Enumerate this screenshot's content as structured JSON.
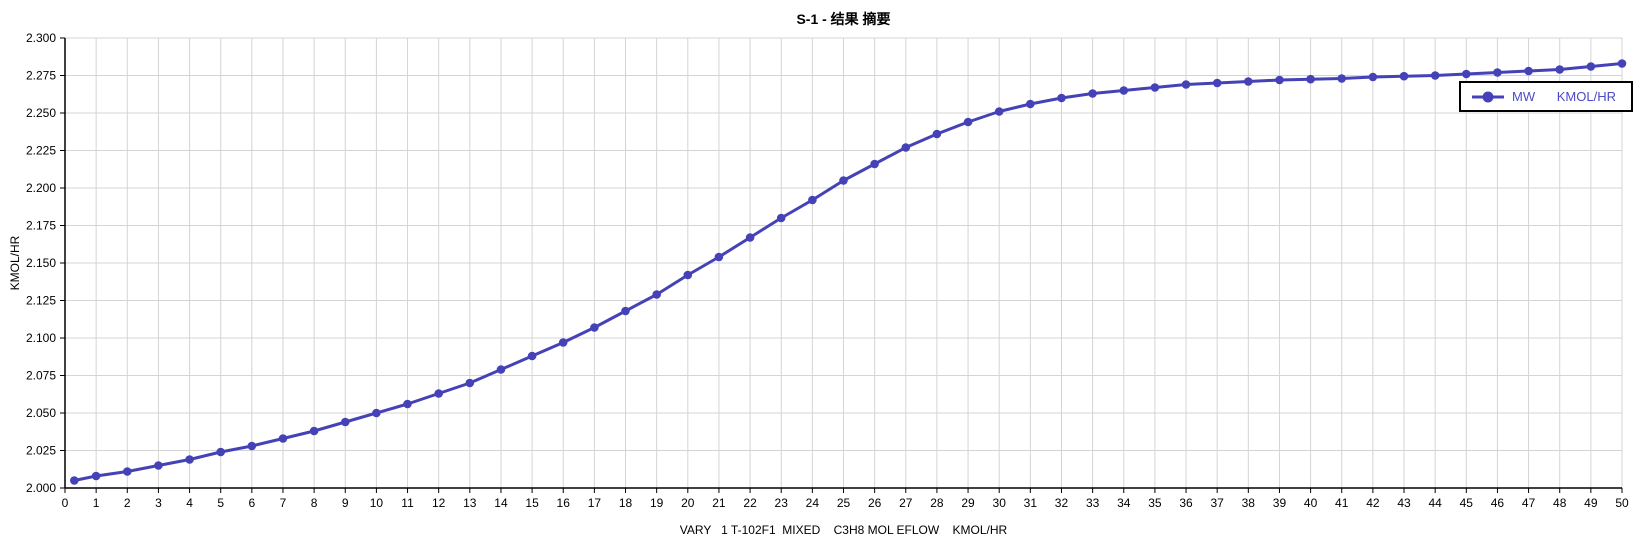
{
  "title": "S-1 - 结果 摘要",
  "colors": {
    "series": "#4442b6",
    "grid": "#d4d4d4",
    "axis": "#000000",
    "legend_text": "#4c4ac4",
    "legend_border": "#000000",
    "background": "#ffffff",
    "tick_label": "#000000"
  },
  "y_axis": {
    "label": "KMOL/HR"
  },
  "x_axis": {
    "title": "VARY   1 T-102F1  MIXED    C3H8 MOL EFLOW    KMOL/HR"
  },
  "legend": {
    "series_label": "MW",
    "units_label": "KMOL/HR"
  },
  "chart_data": {
    "type": "line",
    "title": "S-1 - 结果 摘要",
    "xlabel": "VARY   1 T-102F1  MIXED    C3H8 MOL EFLOW    KMOL/HR",
    "ylabel": "KMOL/HR",
    "xlim": [
      0,
      50
    ],
    "ylim": [
      2.0,
      2.3
    ],
    "grid": true,
    "legend_position": "top-right",
    "marker": "circle",
    "x_ticks": [
      "0",
      "1",
      "2",
      "3",
      "4",
      "5",
      "6",
      "7",
      "8",
      "9",
      "10",
      "11",
      "12",
      "13",
      "14",
      "15",
      "16",
      "17",
      "18",
      "19",
      "20",
      "21",
      "22",
      "23",
      "24",
      "25",
      "26",
      "27",
      "28",
      "29",
      "30",
      "31",
      "32",
      "33",
      "34",
      "35",
      "36",
      "37",
      "38",
      "39",
      "40",
      "41",
      "42",
      "43",
      "44",
      "45",
      "46",
      "47",
      "48",
      "49",
      "50"
    ],
    "y_ticks": [
      "2.000",
      "2.025",
      "2.050",
      "2.075",
      "2.100",
      "2.125",
      "2.150",
      "2.175",
      "2.200",
      "2.225",
      "2.250",
      "2.275",
      "2.300"
    ],
    "series": [
      {
        "name": "MW",
        "units": "KMOL/HR",
        "x": [
          0.3,
          1,
          2,
          3,
          4,
          5,
          6,
          7,
          8,
          9,
          10,
          11,
          12,
          13,
          14,
          15,
          16,
          17,
          18,
          19,
          20,
          21,
          22,
          23,
          24,
          25,
          26,
          27,
          28,
          29,
          30,
          31,
          32,
          33,
          34,
          35,
          36,
          37,
          38,
          39,
          40,
          41,
          42,
          43,
          44,
          45,
          46,
          47,
          48,
          49,
          50
        ],
        "y": [
          2.005,
          2.008,
          2.011,
          2.015,
          2.019,
          2.024,
          2.028,
          2.033,
          2.038,
          2.044,
          2.05,
          2.056,
          2.063,
          2.07,
          2.079,
          2.088,
          2.097,
          2.107,
          2.118,
          2.129,
          2.142,
          2.154,
          2.167,
          2.18,
          2.192,
          2.205,
          2.216,
          2.227,
          2.236,
          2.244,
          2.251,
          2.256,
          2.26,
          2.263,
          2.265,
          2.267,
          2.269,
          2.27,
          2.271,
          2.272,
          2.2725,
          2.273,
          2.274,
          2.2745,
          2.275,
          2.276,
          2.277,
          2.278,
          2.279,
          2.281,
          2.283
        ]
      }
    ]
  }
}
